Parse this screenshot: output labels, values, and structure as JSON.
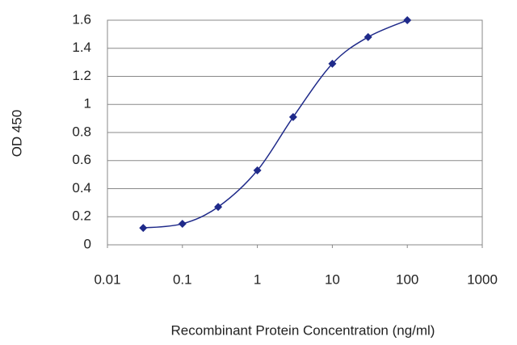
{
  "chart_data": {
    "type": "line",
    "x_label": "Recombinant Protein Concentration (ng/ml)",
    "y_label": "OD 450",
    "x": [
      0.03,
      0.1,
      0.3,
      1,
      3,
      10,
      30,
      100
    ],
    "series": [
      {
        "color": "#1f2a8a",
        "values": [
          0.12,
          0.15,
          0.27,
          0.53,
          0.91,
          1.29,
          1.48,
          1.6
        ]
      }
    ],
    "xscale": "log",
    "xlim": [
      0.01,
      1000
    ],
    "xticks": [
      0.01,
      0.1,
      1,
      10,
      100,
      1000
    ],
    "ylim": [
      0,
      1.6
    ],
    "yticks": [
      0,
      0.2,
      0.4,
      0.6,
      0.8,
      1,
      1.2,
      1.4,
      1.6
    ],
    "grid": true
  }
}
